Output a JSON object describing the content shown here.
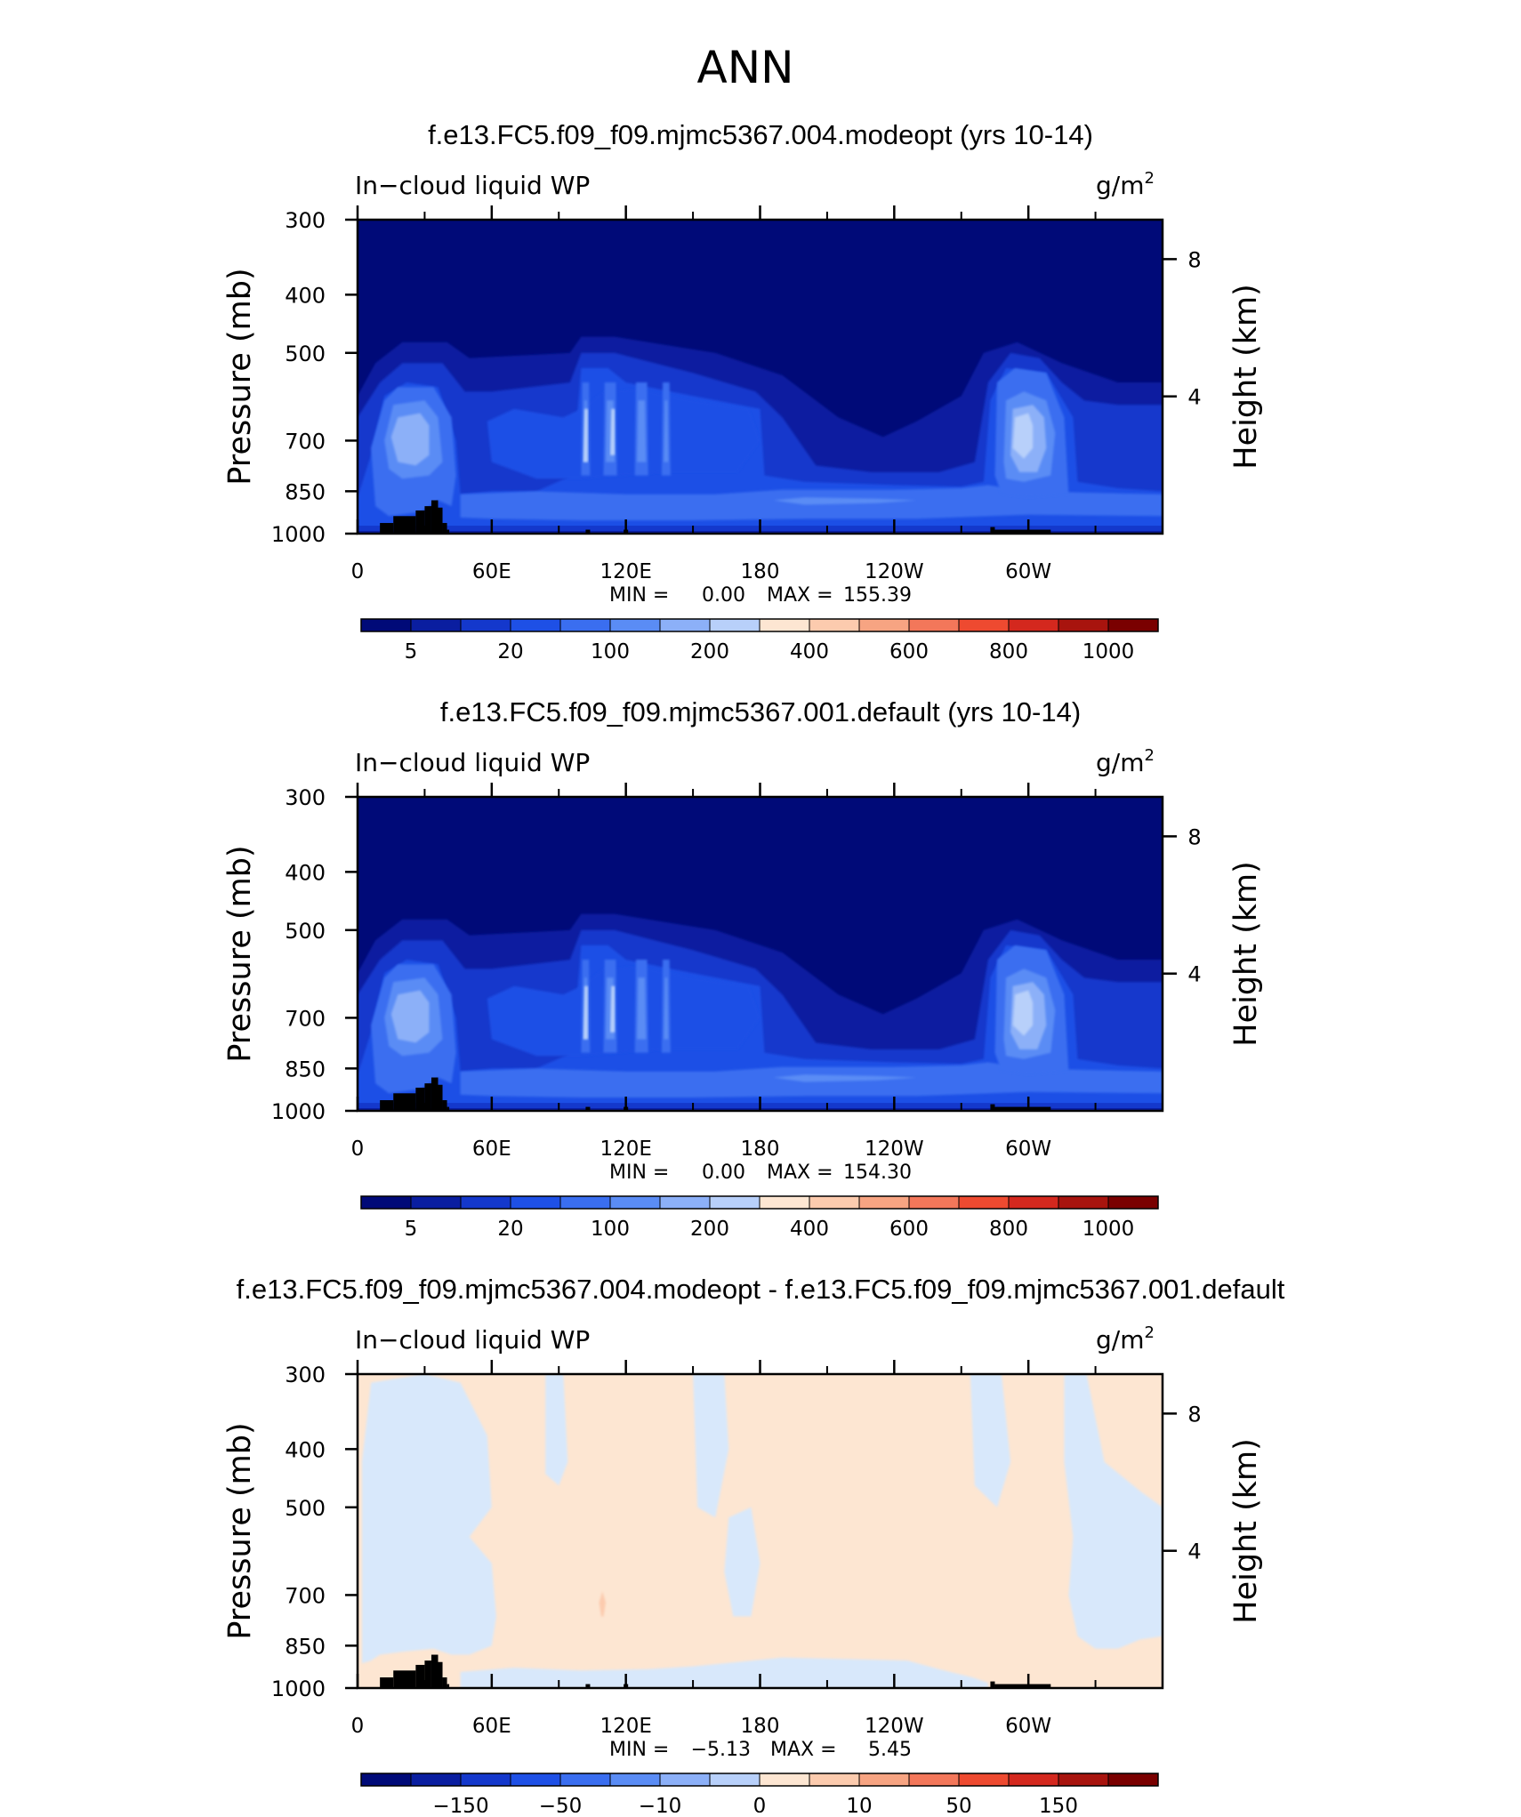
{
  "page": {
    "title": "ANN"
  },
  "colors": {
    "frame": "#000000",
    "land": "#000000",
    "scale14": [
      "#000a78",
      "#0a1ea0",
      "#1438cc",
      "#1e50e6",
      "#3a6ef0",
      "#5a8cf5",
      "#8cb0f8",
      "#b8d0fa",
      "#d8e8fb",
      "#fde6d2",
      "#fccbae",
      "#f7a482",
      "#f3775a",
      "#ee4a30",
      "#d4281e",
      "#a8140e",
      "#7a0000"
    ]
  },
  "panels": [
    {
      "title": "f.e13.FC5.f09_f09.mjmc5367.004.modeopt (yrs 10-14)",
      "left_label": "In−cloud liquid WP",
      "right_label": "g/m",
      "right_label_sup": "2",
      "stats_min_label": "MIN =",
      "stats_min": "0.00",
      "stats_max_label": "MAX =",
      "stats_max": "155.39",
      "colorbar_labels": [
        "5",
        "20",
        "100",
        "200",
        "400",
        "600",
        "800",
        "1000"
      ]
    },
    {
      "title": "f.e13.FC5.f09_f09.mjmc5367.001.default (yrs 10-14)",
      "left_label": "In−cloud liquid WP",
      "right_label": "g/m",
      "right_label_sup": "2",
      "stats_min_label": "MIN =",
      "stats_min": "0.00",
      "stats_max_label": "MAX =",
      "stats_max": "154.30",
      "colorbar_labels": [
        "5",
        "20",
        "100",
        "200",
        "400",
        "600",
        "800",
        "1000"
      ]
    },
    {
      "title": "f.e13.FC5.f09_f09.mjmc5367.004.modeopt - f.e13.FC5.f09_f09.mjmc5367.001.default",
      "left_label": "In−cloud liquid WP",
      "right_label": "g/m",
      "right_label_sup": "2",
      "stats_min_label": "MIN =",
      "stats_min": "−5.13",
      "stats_max_label": "MAX =",
      "stats_max": "5.45",
      "colorbar_labels": [
        "−150",
        "−50",
        "−10",
        "0",
        "10",
        "50",
        "150"
      ]
    }
  ],
  "chart_data": [
    {
      "type": "heatmap",
      "title": "f.e13.FC5.f09_f09.mjmc5367.004.modeopt (yrs 10-14)",
      "variable": "In−cloud liquid WP",
      "units": "g/m2",
      "ylabel": "Pressure (mb)",
      "y2label": "Height (km)",
      "x_ticks": [
        "0",
        "60E",
        "120E",
        "180",
        "120W",
        "60W"
      ],
      "x_tick_values": [
        0,
        60,
        120,
        180,
        240,
        300
      ],
      "xlim": [
        0,
        360
      ],
      "y_ticks": [
        "300",
        "400",
        "500",
        "700",
        "850",
        "1000"
      ],
      "y_tick_values": [
        300,
        400,
        500,
        700,
        850,
        1000
      ],
      "ylim": [
        1000,
        300
      ],
      "y2_ticks": [
        "8",
        "4"
      ],
      "y2_tick_values": [
        8,
        4
      ],
      "contour_levels": [
        5,
        20,
        100,
        200,
        400,
        600,
        800,
        1000
      ],
      "min": 0.0,
      "max": 155.39
    },
    {
      "type": "heatmap",
      "title": "f.e13.FC5.f09_f09.mjmc5367.001.default (yrs 10-14)",
      "variable": "In−cloud liquid WP",
      "units": "g/m2",
      "ylabel": "Pressure (mb)",
      "y2label": "Height (km)",
      "x_ticks": [
        "0",
        "60E",
        "120E",
        "180",
        "120W",
        "60W"
      ],
      "x_tick_values": [
        0,
        60,
        120,
        180,
        240,
        300
      ],
      "xlim": [
        0,
        360
      ],
      "y_ticks": [
        "300",
        "400",
        "500",
        "700",
        "850",
        "1000"
      ],
      "y_tick_values": [
        300,
        400,
        500,
        700,
        850,
        1000
      ],
      "ylim": [
        1000,
        300
      ],
      "y2_ticks": [
        "8",
        "4"
      ],
      "y2_tick_values": [
        8,
        4
      ],
      "contour_levels": [
        5,
        20,
        100,
        200,
        400,
        600,
        800,
        1000
      ],
      "min": 0.0,
      "max": 154.3
    },
    {
      "type": "heatmap",
      "title": "f.e13.FC5.f09_f09.mjmc5367.004.modeopt - f.e13.FC5.f09_f09.mjmc5367.001.default",
      "variable": "In−cloud liquid WP",
      "units": "g/m2",
      "ylabel": "Pressure (mb)",
      "y2label": "Height (km)",
      "x_ticks": [
        "0",
        "60E",
        "120E",
        "180",
        "120W",
        "60W"
      ],
      "x_tick_values": [
        0,
        60,
        120,
        180,
        240,
        300
      ],
      "xlim": [
        0,
        360
      ],
      "y_ticks": [
        "300",
        "400",
        "500",
        "700",
        "850",
        "1000"
      ],
      "y_tick_values": [
        300,
        400,
        500,
        700,
        850,
        1000
      ],
      "ylim": [
        1000,
        300
      ],
      "y2_ticks": [
        "8",
        "4"
      ],
      "y2_tick_values": [
        8,
        4
      ],
      "contour_levels": [
        -150,
        -50,
        -10,
        0,
        10,
        50,
        150
      ],
      "min": -5.13,
      "max": 5.45
    }
  ]
}
